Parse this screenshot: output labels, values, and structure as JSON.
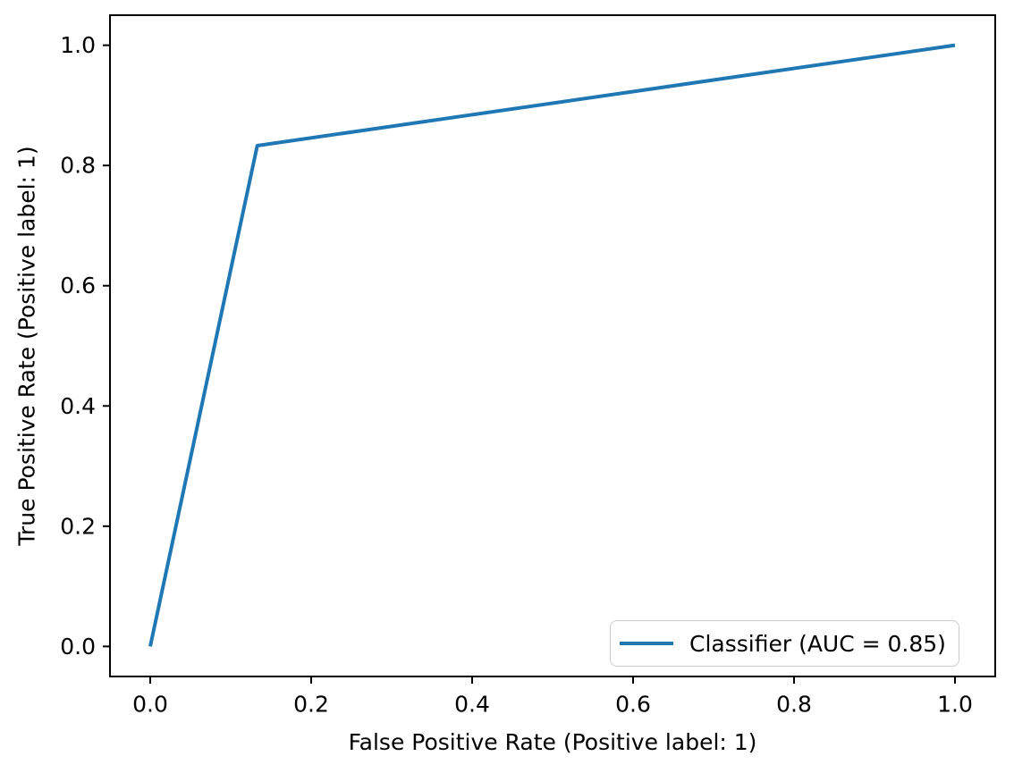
{
  "figure": {
    "background": "#ffffff",
    "axis_color": "#000000"
  },
  "chart_data": {
    "type": "line",
    "title": "",
    "xlabel": "False Positive Rate (Positive label: 1)",
    "ylabel": "True Positive Rate (Positive label: 1)",
    "xlim": [
      -0.05,
      1.05
    ],
    "ylim": [
      -0.05,
      1.05
    ],
    "x_ticks": [
      "0.0",
      "0.2",
      "0.4",
      "0.6",
      "0.8",
      "1.0"
    ],
    "x_tick_values": [
      0.0,
      0.2,
      0.4,
      0.6,
      0.8,
      1.0
    ],
    "y_ticks": [
      "0.0",
      "0.2",
      "0.4",
      "0.6",
      "0.8",
      "1.0"
    ],
    "y_tick_values": [
      0.0,
      0.2,
      0.4,
      0.6,
      0.8,
      1.0
    ],
    "grid": false,
    "legend_position": "lower right",
    "series": [
      {
        "name": "Classifier (AUC = 0.85)",
        "color": "#1f77b4",
        "x": [
          0.0,
          0.133,
          1.0
        ],
        "y": [
          0.0,
          0.833,
          1.0
        ]
      }
    ]
  }
}
